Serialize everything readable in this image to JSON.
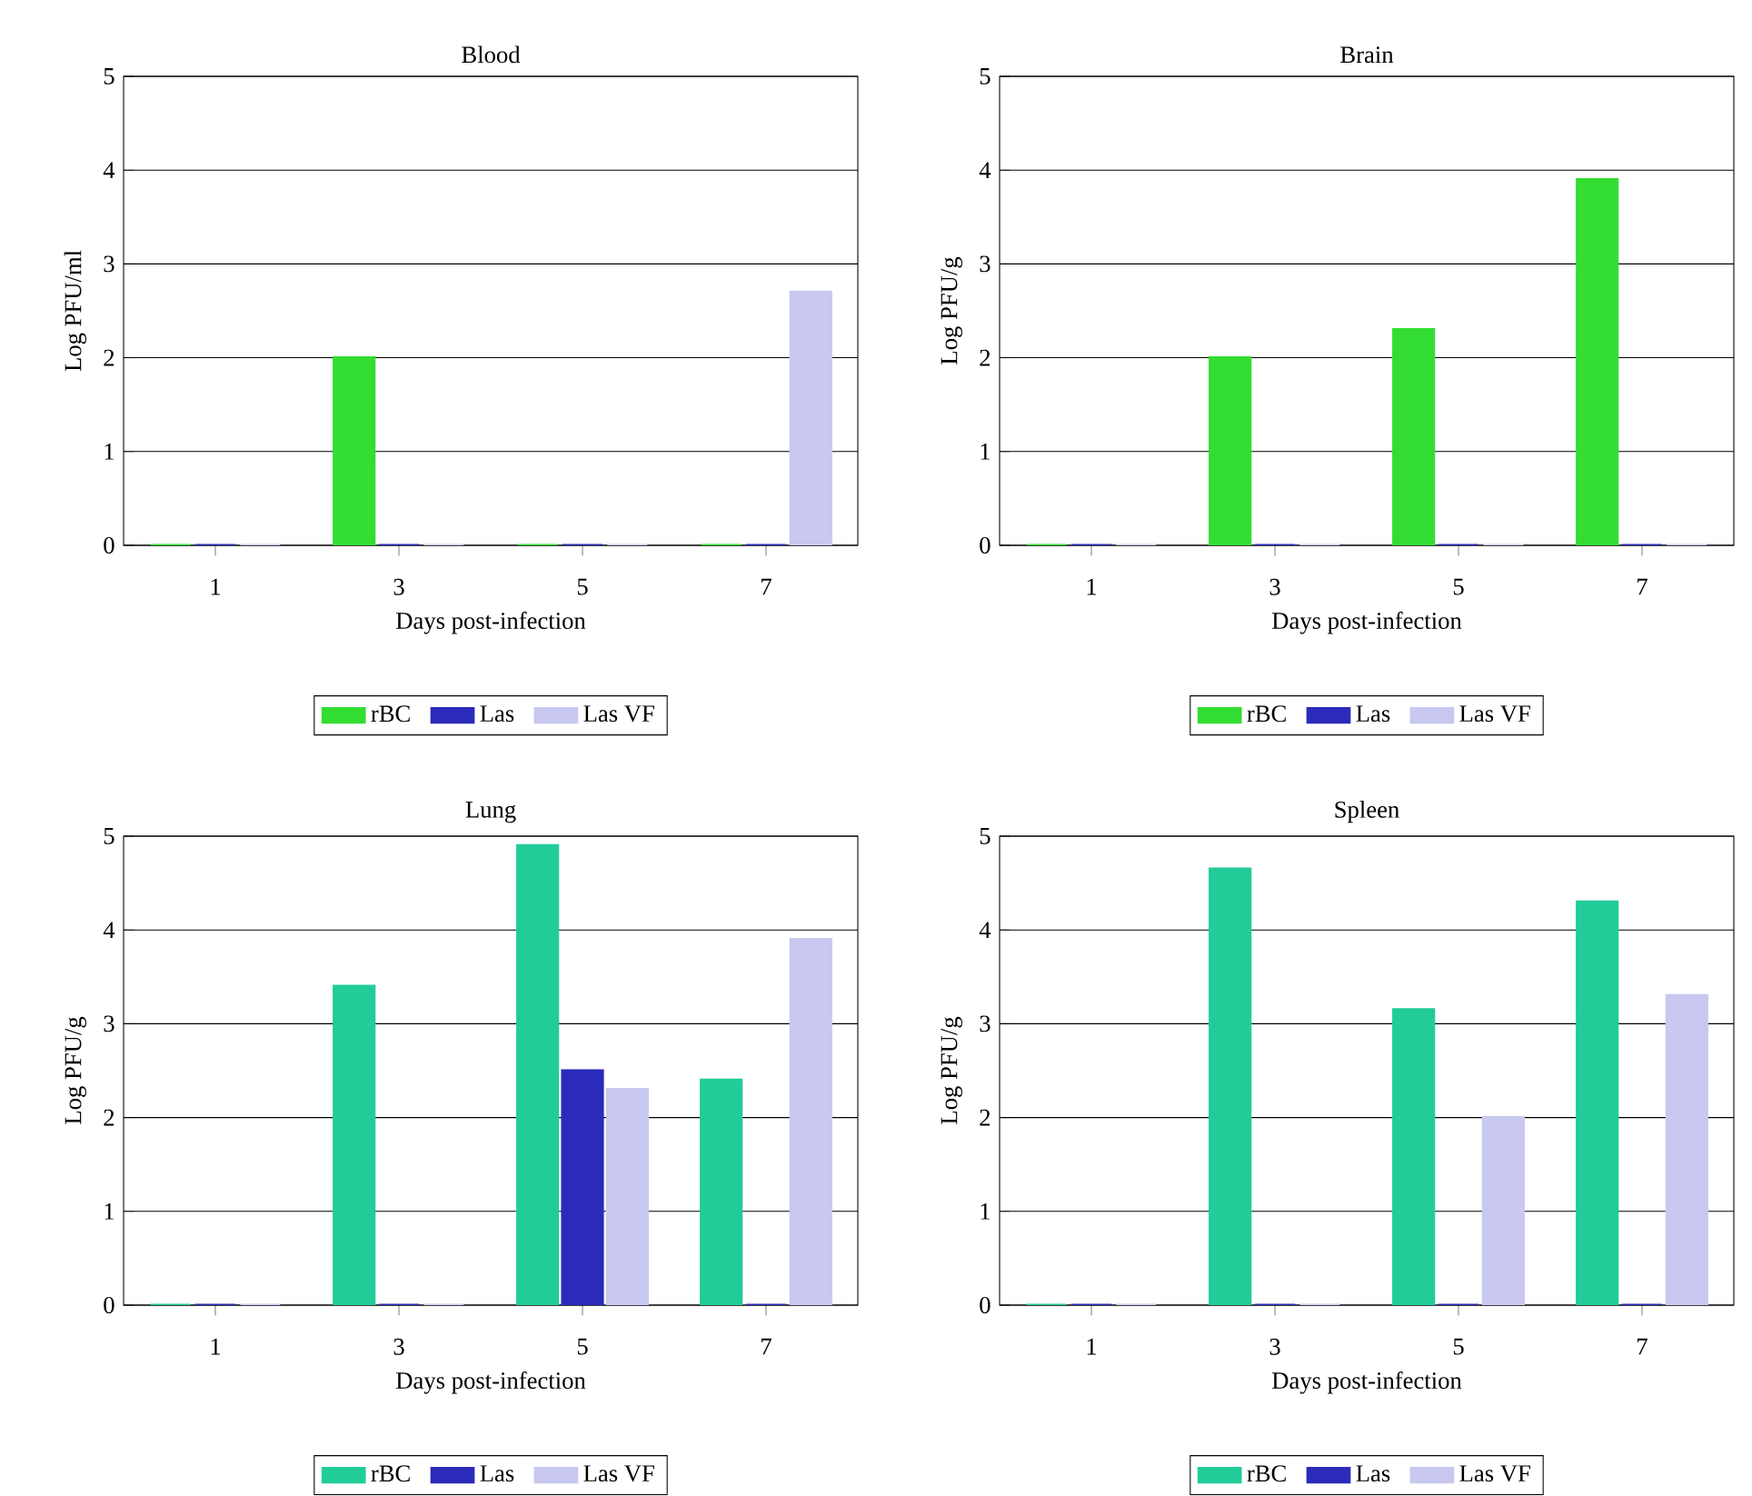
{
  "chart_data": [
    {
      "type": "bar",
      "title": "Blood",
      "xlabel": "Days post-infection",
      "ylabel": "Log PFU/ml",
      "categories": [
        "1",
        "3",
        "5",
        "7"
      ],
      "ylim": [
        0,
        5
      ],
      "yticks": [
        0,
        1,
        2,
        3,
        4,
        5
      ],
      "grid": "y",
      "legend": "bottom",
      "series": [
        {
          "name": "rBC",
          "color": "#33dd33",
          "values": [
            0,
            2.0,
            0,
            0
          ]
        },
        {
          "name": "Las",
          "color": "#2b2bbb",
          "values": [
            0,
            0,
            0,
            0
          ]
        },
        {
          "name": "Las VF",
          "color": "#c8c8f0",
          "values": [
            0,
            0,
            0,
            2.7
          ]
        }
      ]
    },
    {
      "type": "bar",
      "title": "Brain",
      "xlabel": "Days post-infection",
      "ylabel": "Log PFU/g",
      "categories": [
        "1",
        "3",
        "5",
        "7"
      ],
      "ylim": [
        0,
        5
      ],
      "yticks": [
        0,
        1,
        2,
        3,
        4,
        5
      ],
      "grid": "y",
      "legend": "bottom",
      "series": [
        {
          "name": "rBC",
          "color": "#33dd33",
          "values": [
            0,
            2.0,
            2.3,
            3.9
          ]
        },
        {
          "name": "Las",
          "color": "#2b2bbb",
          "values": [
            0,
            0,
            0,
            0
          ]
        },
        {
          "name": "Las VF",
          "color": "#c8c8f0",
          "values": [
            0,
            0,
            0,
            0
          ]
        }
      ]
    },
    {
      "type": "bar",
      "title": "Lung",
      "xlabel": "Days post-infection",
      "ylabel": "Log PFU/g",
      "categories": [
        "1",
        "3",
        "5",
        "7"
      ],
      "ylim": [
        0,
        5
      ],
      "yticks": [
        0,
        1,
        2,
        3,
        4,
        5
      ],
      "grid": "y",
      "legend": "bottom",
      "series": [
        {
          "name": "rBC",
          "color": "#22cc99",
          "values": [
            0,
            3.4,
            4.9,
            2.4
          ]
        },
        {
          "name": "Las",
          "color": "#2b2bbb",
          "values": [
            0,
            0,
            2.5,
            0
          ]
        },
        {
          "name": "Las VF",
          "color": "#c8c8f0",
          "values": [
            0,
            0,
            2.3,
            3.9
          ]
        }
      ]
    },
    {
      "type": "bar",
      "title": "Spleen",
      "xlabel": "Days post-infection",
      "ylabel": "Log PFU/g",
      "categories": [
        "1",
        "3",
        "5",
        "7"
      ],
      "ylim": [
        0,
        5
      ],
      "yticks": [
        0,
        1,
        2,
        3,
        4,
        5
      ],
      "grid": "y",
      "legend": "bottom",
      "series": [
        {
          "name": "rBC",
          "color": "#22cc99",
          "values": [
            0,
            4.65,
            3.15,
            4.3
          ]
        },
        {
          "name": "Las",
          "color": "#2b2bbb",
          "values": [
            0,
            0,
            0,
            0
          ]
        },
        {
          "name": "Las VF",
          "color": "#c8c8f0",
          "values": [
            0,
            0,
            2.0,
            3.3
          ]
        }
      ]
    }
  ]
}
